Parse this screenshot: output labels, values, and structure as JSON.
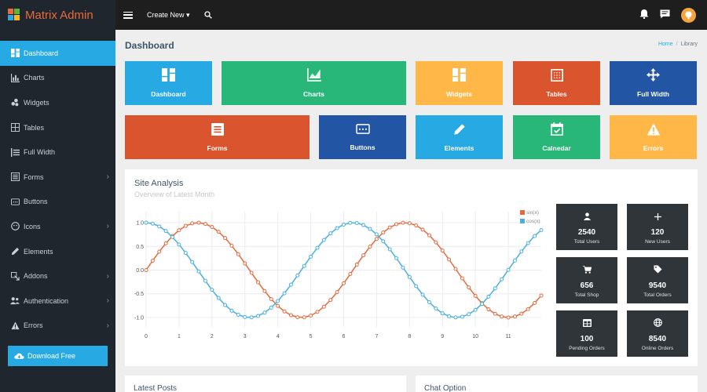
{
  "app": {
    "title": "Matrix Admin"
  },
  "sidebar": {
    "items": [
      {
        "label": "Dashboard",
        "icon": "dashboard-icon",
        "active": true,
        "has_children": false
      },
      {
        "label": "Charts",
        "icon": "bar-chart-icon",
        "active": false,
        "has_children": false
      },
      {
        "label": "Widgets",
        "icon": "widgets-icon",
        "active": false,
        "has_children": false
      },
      {
        "label": "Tables",
        "icon": "table-icon",
        "active": false,
        "has_children": false
      },
      {
        "label": "Full Width",
        "icon": "full-width-icon",
        "active": false,
        "has_children": false
      },
      {
        "label": "Forms",
        "icon": "form-icon",
        "active": false,
        "has_children": true
      },
      {
        "label": "Buttons",
        "icon": "button-icon",
        "active": false,
        "has_children": false
      },
      {
        "label": "Icons",
        "icon": "face-icon",
        "active": false,
        "has_children": true
      },
      {
        "label": "Elements",
        "icon": "pencil-icon",
        "active": false,
        "has_children": false
      },
      {
        "label": "Addons",
        "icon": "addons-icon",
        "active": false,
        "has_children": true
      },
      {
        "label": "Authentication",
        "icon": "users-icon",
        "active": false,
        "has_children": true
      },
      {
        "label": "Errors",
        "icon": "warning-icon",
        "active": false,
        "has_children": true
      }
    ],
    "download_label": "Download Free"
  },
  "topbar": {
    "create_label": "Create New"
  },
  "page": {
    "title": "Dashboard",
    "breadcrumb": [
      "Home",
      "Library"
    ]
  },
  "tiles": [
    {
      "label": "Dashboard",
      "color": "#27a9e3",
      "icon": "dashboard-icon"
    },
    {
      "label": "Charts",
      "color": "#28b779",
      "icon": "line-chart-icon"
    },
    {
      "label": "Widgets",
      "color": "#ffb848",
      "icon": "widgets-icon"
    },
    {
      "label": "Tables",
      "color": "#da542e",
      "icon": "grid-border-icon"
    },
    {
      "label": "Full Width",
      "color": "#2255a4",
      "icon": "arrows-icon"
    },
    {
      "label": "Forms",
      "color": "#da542e",
      "icon": "form-icon"
    },
    {
      "label": "Buttons",
      "color": "#2255a4",
      "icon": "button-icon"
    },
    {
      "label": "Elements",
      "color": "#27a9e3",
      "icon": "pencil-icon"
    },
    {
      "label": "Calnedar",
      "color": "#28b779",
      "icon": "calendar-check-icon"
    },
    {
      "label": "Errors",
      "color": "#ffb848",
      "icon": "warning-icon"
    }
  ],
  "site_analysis": {
    "title": "Site Analysis",
    "subtitle": "Overview of Latest Month"
  },
  "stats": [
    {
      "value": "2540",
      "label": "Total Users",
      "icon": "user-icon"
    },
    {
      "value": "120",
      "label": "New Users",
      "icon": "plus-icon"
    },
    {
      "value": "656",
      "label": "Total Shop",
      "icon": "cart-icon"
    },
    {
      "value": "9540",
      "label": "Total Orders",
      "icon": "tag-icon"
    },
    {
      "value": "100",
      "label": "Pending Orders",
      "icon": "table-icon"
    },
    {
      "value": "8540",
      "label": "Online Orders",
      "icon": "globe-icon"
    }
  ],
  "bottom": {
    "latest_posts": "Latest Posts",
    "chat_option": "Chat Option"
  },
  "chart_data": {
    "type": "line",
    "x_ticks": [
      0,
      1,
      2,
      3,
      4,
      5,
      6,
      7,
      8,
      9,
      10,
      11
    ],
    "y_ticks": [
      "1.0",
      "0.5",
      "0.0",
      "-0.5",
      "-1.0"
    ],
    "ylim": [
      -1.1,
      1.1
    ],
    "xlim": [
      0,
      12
    ],
    "legend_position": "top-right",
    "series": [
      {
        "name": "sin(x)",
        "color": "#e26a3e",
        "function": "sin",
        "x_start": 0,
        "x_end": 12,
        "step": 0.2
      },
      {
        "name": "cos(x)",
        "color": "#4aaee0",
        "function": "cos",
        "x_start": 0,
        "x_end": 12,
        "step": 0.2
      }
    ]
  }
}
